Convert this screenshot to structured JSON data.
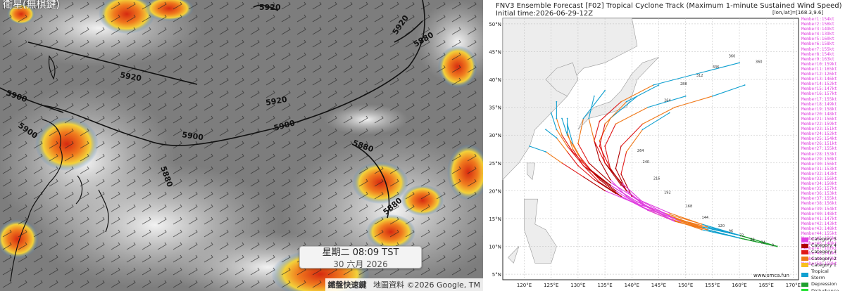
{
  "left_map": {
    "title_partial": "衛星(無棋鍵)",
    "contour_labels": [
      "5920",
      "5920",
      "5880",
      "5900",
      "5920",
      "5900",
      "5920",
      "5900",
      "5880",
      "5900",
      "5880",
      "5880"
    ],
    "time_box": {
      "line1": "星期二 08:09 TST",
      "line2": "30 六月 2026"
    },
    "attribution_brand": "鐵盤快速鍵",
    "attribution_text": "地圖資料 ©2026 Google, TM",
    "colors": {
      "ocean_gray": "#7d7d7d",
      "cloud_white": "#e8e8e8",
      "storm_yellow": "#f3d23a",
      "storm_orange": "#f07a1e",
      "storm_red": "#d62a10",
      "cold_blue": "#3a7fd8",
      "contour": "#111111"
    }
  },
  "right_chart": {
    "title": "FNV3 Ensemble Forecast [F02] Tropical Cyclone Track (Maximum 1-minute Sustained Wind Speed)",
    "initial_time": "Initial time:2026-06-29-12Z",
    "lonlat": "[lon,lat]=[168.3,9.6]",
    "lat_labels": [
      "50°N",
      "45°N",
      "40°N",
      "35°N",
      "30°N",
      "25°N",
      "20°N",
      "15°N",
      "10°N",
      "5°N"
    ],
    "lon_labels": [
      "120°E",
      "125°E",
      "130°E",
      "135°E",
      "140°E",
      "145°E",
      "150°E",
      "155°E",
      "160°E",
      "165°E",
      "170°E"
    ],
    "members": [
      "Member1:154kt",
      "Member2:156kt",
      "Member3:149kt",
      "Member4:139kt",
      "Member5:160kt",
      "Member6:158kt",
      "Member7:155kt",
      "Member8:154kt",
      "Member9:163kt",
      "Member10:159kt",
      "Member11:165kt",
      "Member12:126kt",
      "Member13:146kt",
      "Member14:152kt",
      "Member15:147kt",
      "Member16:157kt",
      "Member17:155kt",
      "Member18:149kt",
      "Member19:158kt",
      "Member20:148kt",
      "Member21:156kt",
      "Member22:159kt",
      "Member23:151kt",
      "Member24:152kt",
      "Member25:154kt",
      "Member26:151kt",
      "Member27:155kt",
      "Member28:153kt",
      "Member29:150kt",
      "Member30:156kt",
      "Member31:153kt",
      "Member32:143kt",
      "Member33:156kt",
      "Member34:150kt",
      "Member35:157kt",
      "Member36:153kt",
      "Member37:155kt",
      "Member38:156kt",
      "Member39:154kt",
      "Member40:148kt",
      "Member41:147kt",
      "Member42:143kt",
      "Member43:148kt",
      "Member44:155kt",
      "Member45:156kt",
      "Member46:148kt",
      "Member47:162kt",
      "Member48:143kt",
      "Member49:147kt",
      "Member50:158kt"
    ],
    "legend": [
      {
        "label": "Category 5",
        "color": "#e040e0"
      },
      {
        "label": "Category 4",
        "color": "#b00000"
      },
      {
        "label": "Category 3",
        "color": "#e01818"
      },
      {
        "label": "Category 2",
        "color": "#f07818"
      },
      {
        "label": "Category 1",
        "color": "#f8c020"
      },
      {
        "label": "Tropical Storm",
        "color": "#10a0d0"
      },
      {
        "label": "Depression",
        "color": "#20a030"
      },
      {
        "label": "Disturbance",
        "color": "#20e030"
      }
    ],
    "credit": "www.smca.fun",
    "track_labels": [
      "360",
      "360",
      "336",
      "312",
      "288",
      "264",
      "264",
      "240",
      "216",
      "192",
      "168",
      "144",
      "120",
      "96",
      "72",
      "48",
      "24",
      "0"
    ]
  },
  "chart_data": {
    "type": "line",
    "title": "FNV3 Ensemble Forecast [F02] Tropical Cyclone Track (Maximum 1-minute Sustained Wind Speed)",
    "xlabel": "",
    "ylabel": "",
    "xlim": [
      116,
      171
    ],
    "ylim": [
      4,
      51
    ],
    "grid": true,
    "legend_position": "bottom-right",
    "tracks": [
      {
        "name": "Member1:154kt",
        "lon": [
          167,
          160,
          153,
          147,
          141,
          136,
          131,
          128,
          126,
          125
        ],
        "lat": [
          10,
          12,
          13.5,
          15.5,
          18,
          21,
          24.5,
          28,
          31,
          34
        ]
      },
      {
        "name": "Member5:160kt",
        "lon": [
          167,
          160,
          153,
          147,
          141,
          136,
          132,
          130,
          131,
          135
        ],
        "lat": [
          10,
          12,
          14,
          16,
          18.5,
          21.5,
          25,
          28.5,
          33,
          38
        ]
      },
      {
        "name": "Member9:163kt",
        "lon": [
          167,
          160,
          153,
          147,
          142,
          138,
          135,
          134,
          136,
          141
        ],
        "lat": [
          10,
          11.5,
          13,
          15,
          17.5,
          21,
          25,
          29,
          33,
          37
        ]
      },
      {
        "name": "Member11:165kt",
        "lon": [
          167,
          160,
          154,
          149,
          144,
          140,
          138,
          139,
          142,
          147
        ],
        "lat": [
          10,
          11.5,
          13,
          14.5,
          16.5,
          19,
          23,
          27,
          31,
          34
        ]
      },
      {
        "name": "Member20:148kt",
        "lon": [
          167,
          160,
          154,
          148,
          143,
          139,
          136,
          135,
          137,
          143,
          150
        ],
        "lat": [
          10,
          11.5,
          13,
          14.5,
          17,
          20,
          24,
          28,
          32,
          35,
          37
        ]
      },
      {
        "name": "Member30:156kt",
        "lon": [
          167,
          160,
          154,
          148,
          143,
          138,
          134,
          131,
          129,
          128
        ],
        "lat": [
          10,
          11.5,
          13,
          14.5,
          16.5,
          19,
          22,
          25,
          28.5,
          32
        ]
      },
      {
        "name": "Member40:148kt",
        "lon": [
          167,
          160,
          154,
          148,
          142,
          137,
          133,
          130,
          128,
          127
        ],
        "lat": [
          10,
          12,
          13.5,
          15,
          17,
          20,
          23,
          26.5,
          30,
          33
        ]
      },
      {
        "name": "Member47:162kt",
        "lon": [
          167,
          160,
          153,
          146,
          140,
          135,
          131,
          127,
          124,
          121
        ],
        "lat": [
          10,
          12,
          14,
          16,
          18,
          20,
          22.5,
          25,
          27,
          28
        ]
      },
      {
        "name": "Member50:158kt",
        "lon": [
          167,
          160,
          154,
          148,
          143,
          139,
          136,
          134,
          133,
          134,
          138,
          144,
          152,
          160
        ],
        "lat": [
          10,
          11.5,
          13,
          14.5,
          16.5,
          19,
          22,
          25.5,
          29,
          32.5,
          36,
          39,
          41,
          43
        ]
      },
      {
        "name": "Member13:146kt",
        "lon": [
          167,
          160,
          154,
          148,
          143,
          139,
          137,
          138,
          142,
          148,
          155,
          161
        ],
        "lat": [
          10,
          11.5,
          13,
          14.5,
          17,
          20,
          24,
          28,
          32,
          35,
          37,
          39
        ]
      },
      {
        "name": "Member22:159kt",
        "lon": [
          167,
          160,
          154,
          148,
          143,
          139,
          136,
          134,
          135,
          139,
          145
        ],
        "lat": [
          10,
          11.5,
          13,
          14.5,
          17,
          20,
          24,
          28,
          32,
          36,
          39
        ]
      },
      {
        "name": "Member33:156kt",
        "lon": [
          167,
          160,
          153,
          147,
          141,
          136,
          132,
          129,
          127,
          126,
          126
        ],
        "lat": [
          10,
          12,
          13.5,
          15.5,
          18,
          21,
          24,
          27,
          30,
          33,
          36
        ]
      },
      {
        "name": "Member41:147kt",
        "lon": [
          167,
          160,
          153,
          147,
          142,
          138,
          135,
          133,
          132,
          133
        ],
        "lat": [
          10,
          12,
          13.5,
          15.5,
          18,
          21.5,
          25,
          29,
          33,
          37
        ]
      },
      {
        "name": "Member2:156kt",
        "lon": [
          167,
          160,
          154,
          148,
          142,
          137,
          133,
          130,
          128,
          126,
          124
        ],
        "lat": [
          10,
          11.5,
          13,
          15,
          17,
          19.5,
          22,
          24.5,
          27,
          29.5,
          31
        ]
      },
      {
        "name": "Member17:155kt",
        "lon": [
          167,
          160,
          154,
          148,
          143,
          138,
          134,
          131,
          129,
          128,
          128
        ],
        "lat": [
          10,
          11.5,
          13,
          14.5,
          16.5,
          19,
          21.5,
          24.5,
          27.5,
          30.5,
          33
        ]
      }
    ]
  }
}
